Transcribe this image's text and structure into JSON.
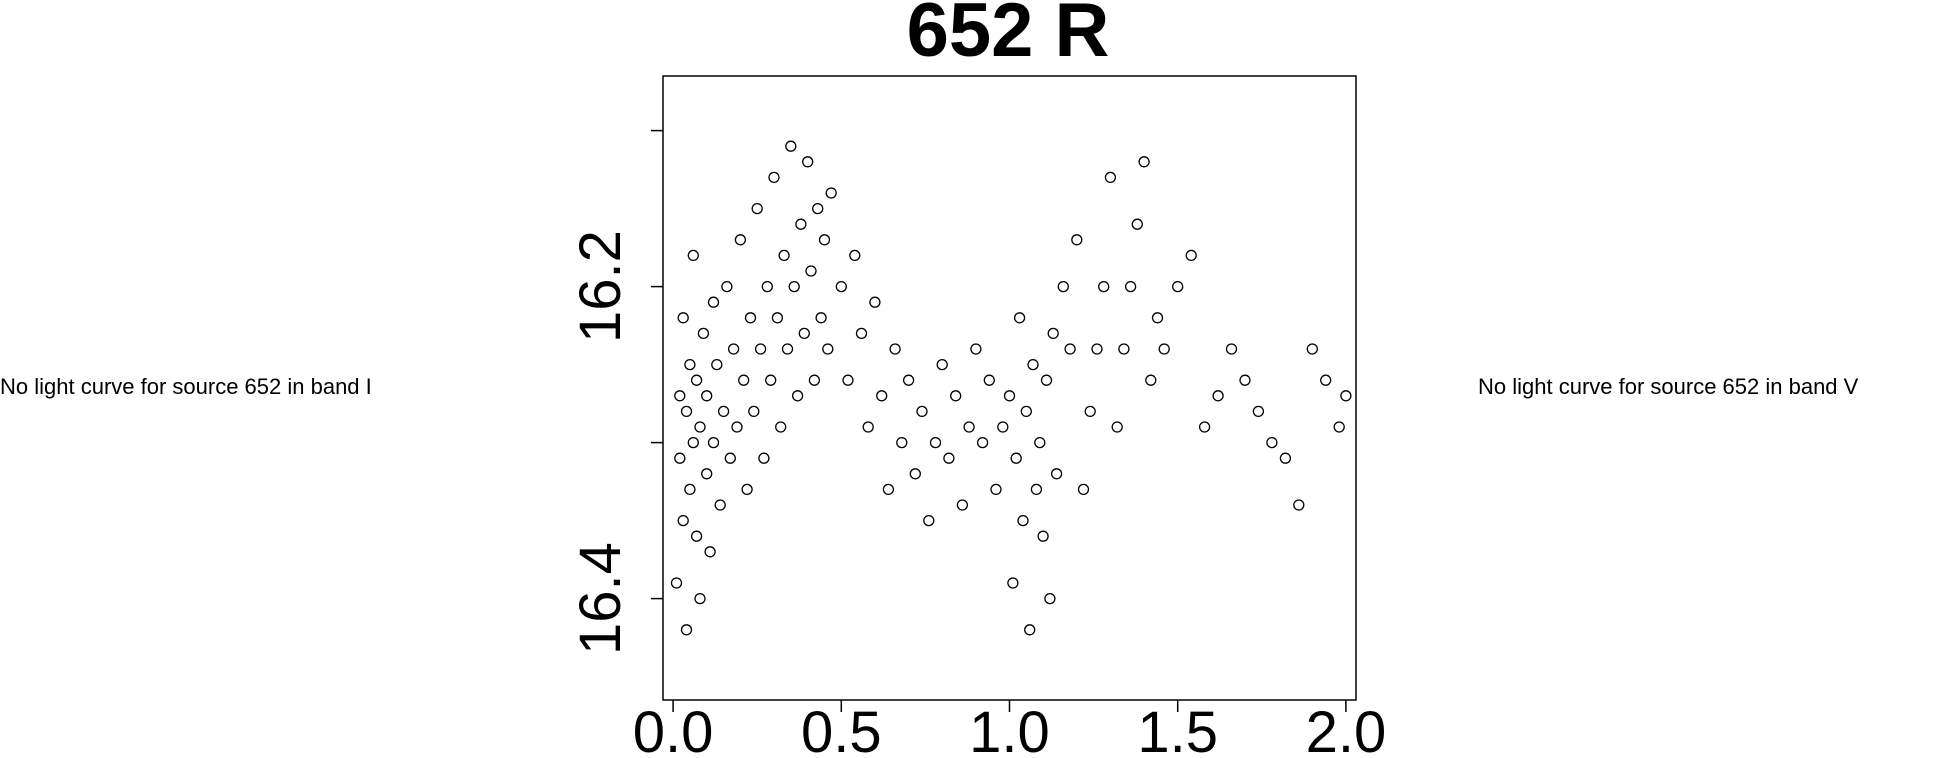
{
  "messages": {
    "left": "No light curve for source 652 in band I",
    "right": "No light curve for source 652 in band V"
  },
  "chart_data": {
    "type": "scatter",
    "title": "652 R",
    "xlabel": "",
    "ylabel": "",
    "xlim": [
      -0.03,
      2.03
    ],
    "ylim": [
      16.465,
      16.065
    ],
    "y_inverted": true,
    "grid": false,
    "marker": "open-circle",
    "x_ticks": [
      0.0,
      0.5,
      1.0,
      1.5,
      2.0
    ],
    "x_tick_labels": [
      "0.0",
      "0.5",
      "1.0",
      "1.5",
      "2.0"
    ],
    "y_ticks": [
      16.1,
      16.2,
      16.3,
      16.4
    ],
    "y_tick_labels": [
      "",
      "16.2",
      "",
      "16.4"
    ],
    "clusters_note": "phase-folded light curve shown twice (phase 0-1 repeated at 1-2)",
    "points": [
      [
        0.01,
        16.39
      ],
      [
        0.02,
        16.27
      ],
      [
        0.02,
        16.31
      ],
      [
        0.03,
        16.22
      ],
      [
        0.03,
        16.35
      ],
      [
        0.04,
        16.28
      ],
      [
        0.04,
        16.42
      ],
      [
        0.05,
        16.25
      ],
      [
        0.05,
        16.33
      ],
      [
        0.06,
        16.3
      ],
      [
        0.06,
        16.18
      ],
      [
        0.07,
        16.36
      ],
      [
        0.07,
        16.26
      ],
      [
        0.08,
        16.29
      ],
      [
        0.08,
        16.4
      ],
      [
        0.09,
        16.23
      ],
      [
        0.1,
        16.32
      ],
      [
        0.1,
        16.27
      ],
      [
        0.11,
        16.37
      ],
      [
        0.12,
        16.21
      ],
      [
        0.12,
        16.3
      ],
      [
        0.13,
        16.25
      ],
      [
        0.14,
        16.34
      ],
      [
        0.15,
        16.28
      ],
      [
        0.16,
        16.2
      ],
      [
        0.17,
        16.31
      ],
      [
        0.18,
        16.24
      ],
      [
        0.19,
        16.29
      ],
      [
        0.2,
        16.17
      ],
      [
        0.21,
        16.26
      ],
      [
        0.22,
        16.33
      ],
      [
        0.23,
        16.22
      ],
      [
        0.24,
        16.28
      ],
      [
        0.25,
        16.15
      ],
      [
        0.26,
        16.24
      ],
      [
        0.27,
        16.31
      ],
      [
        0.28,
        16.2
      ],
      [
        0.29,
        16.26
      ],
      [
        0.3,
        16.13
      ],
      [
        0.31,
        16.22
      ],
      [
        0.32,
        16.29
      ],
      [
        0.33,
        16.18
      ],
      [
        0.34,
        16.24
      ],
      [
        0.35,
        16.11
      ],
      [
        0.36,
        16.2
      ],
      [
        0.37,
        16.27
      ],
      [
        0.38,
        16.16
      ],
      [
        0.39,
        16.23
      ],
      [
        0.4,
        16.12
      ],
      [
        0.41,
        16.19
      ],
      [
        0.42,
        16.26
      ],
      [
        0.43,
        16.15
      ],
      [
        0.44,
        16.22
      ],
      [
        0.45,
        16.17
      ],
      [
        0.46,
        16.24
      ],
      [
        0.47,
        16.14
      ],
      [
        0.5,
        16.2
      ],
      [
        0.52,
        16.26
      ],
      [
        0.54,
        16.18
      ],
      [
        0.56,
        16.23
      ],
      [
        0.58,
        16.29
      ],
      [
        0.6,
        16.21
      ],
      [
        0.62,
        16.27
      ],
      [
        0.64,
        16.33
      ],
      [
        0.66,
        16.24
      ],
      [
        0.68,
        16.3
      ],
      [
        0.7,
        16.26
      ],
      [
        0.72,
        16.32
      ],
      [
        0.74,
        16.28
      ],
      [
        0.76,
        16.35
      ],
      [
        0.78,
        16.3
      ],
      [
        0.8,
        16.25
      ],
      [
        0.82,
        16.31
      ],
      [
        0.84,
        16.27
      ],
      [
        0.86,
        16.34
      ],
      [
        0.88,
        16.29
      ],
      [
        0.9,
        16.24
      ],
      [
        0.92,
        16.3
      ],
      [
        0.94,
        16.26
      ],
      [
        0.96,
        16.33
      ],
      [
        0.98,
        16.29
      ],
      [
        1.0,
        16.27
      ],
      [
        1.01,
        16.39
      ],
      [
        1.02,
        16.31
      ],
      [
        1.03,
        16.22
      ],
      [
        1.04,
        16.35
      ],
      [
        1.05,
        16.28
      ],
      [
        1.06,
        16.42
      ],
      [
        1.07,
        16.25
      ],
      [
        1.08,
        16.33
      ],
      [
        1.09,
        16.3
      ],
      [
        1.1,
        16.36
      ],
      [
        1.11,
        16.26
      ],
      [
        1.12,
        16.4
      ],
      [
        1.13,
        16.23
      ],
      [
        1.14,
        16.32
      ],
      [
        1.16,
        16.2
      ],
      [
        1.18,
        16.24
      ],
      [
        1.2,
        16.17
      ],
      [
        1.22,
        16.33
      ],
      [
        1.24,
        16.28
      ],
      [
        1.26,
        16.24
      ],
      [
        1.28,
        16.2
      ],
      [
        1.3,
        16.13
      ],
      [
        1.32,
        16.29
      ],
      [
        1.34,
        16.24
      ],
      [
        1.36,
        16.2
      ],
      [
        1.38,
        16.16
      ],
      [
        1.4,
        16.12
      ],
      [
        1.42,
        16.26
      ],
      [
        1.44,
        16.22
      ],
      [
        1.46,
        16.24
      ],
      [
        1.5,
        16.2
      ],
      [
        1.54,
        16.18
      ],
      [
        1.58,
        16.29
      ],
      [
        1.62,
        16.27
      ],
      [
        1.66,
        16.24
      ],
      [
        1.7,
        16.26
      ],
      [
        1.74,
        16.28
      ],
      [
        1.78,
        16.3
      ],
      [
        1.82,
        16.31
      ],
      [
        1.86,
        16.34
      ],
      [
        1.9,
        16.24
      ],
      [
        1.94,
        16.26
      ],
      [
        1.98,
        16.29
      ],
      [
        2.0,
        16.27
      ]
    ]
  }
}
